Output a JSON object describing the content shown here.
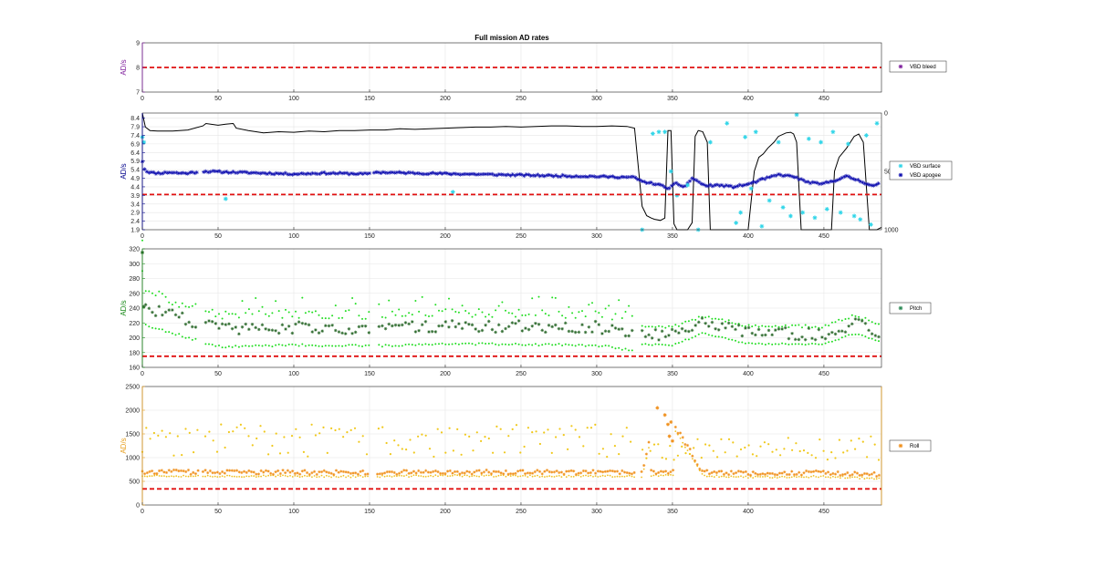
{
  "chart_data": {
    "type": "scatter",
    "title": "Full mission AD rates",
    "x_ticks": [
      0,
      50,
      100,
      150,
      200,
      250,
      300,
      350,
      400,
      450
    ],
    "xlim": [
      0,
      488
    ],
    "panels": [
      {
        "ylabel": "AD/s",
        "color": "#7e1e9c",
        "ylim": [
          7,
          9
        ],
        "y_ticks": [
          7,
          8,
          9
        ],
        "threshold": 8,
        "legend": [
          "VBD bleed"
        ],
        "legend_colors": [
          "#7e1e9c"
        ],
        "series": [
          {
            "name": "VBD bleed",
            "x": [],
            "y": []
          }
        ]
      },
      {
        "ylabel": "AD/s",
        "color": "#00008b",
        "ylim": [
          1.9,
          8.7
        ],
        "y_ticks": [
          1.9,
          2.4,
          2.9,
          3.4,
          3.9,
          4.4,
          4.9,
          5.4,
          5.9,
          6.4,
          6.9,
          7.4,
          7.9,
          8.4
        ],
        "y2_ticks": [
          "0",
          "500",
          "1000"
        ],
        "threshold": 3.95,
        "legend": [
          "VBD surface",
          "VBD apogee"
        ],
        "legend_colors": [
          "#30d5e8",
          "#1010b0"
        ],
        "series": [
          {
            "name": "VBD surface",
            "x": [
              0,
              1,
              55,
              205,
              330,
              337,
              341,
              345,
              349,
              353,
              360,
              367,
              375,
              386,
              392,
              395,
              398,
              402,
              405,
              409,
              414,
              420,
              423,
              428,
              432,
              436,
              440,
              444,
              448,
              452,
              456,
              461,
              466,
              470,
              474,
              478,
              481,
              485
            ],
            "y": [
              7.3,
              7.0,
              3.7,
              4.1,
              1.9,
              7.5,
              7.6,
              7.6,
              5.3,
              3.9,
              4.5,
              1.9,
              7.0,
              8.1,
              2.3,
              2.9,
              7.3,
              4.3,
              7.6,
              2.1,
              3.6,
              7.0,
              3.2,
              2.7,
              8.6,
              2.9,
              7.2,
              2.6,
              7.0,
              3.1,
              7.6,
              2.9,
              6.9,
              2.7,
              2.5,
              7.4,
              2.2,
              8.1
            ]
          },
          {
            "name": "VBD apogee",
            "x": [
              0,
              1,
              3,
              5,
              8,
              12,
              18,
              24,
              30,
              35,
              40,
              60,
              80,
              100,
              120,
              150,
              153,
              180,
              210,
              240,
              270,
              300,
              325,
              330,
              340,
              348,
              352,
              358,
              363,
              372,
              380,
              390,
              400,
              410,
              420,
              430,
              438,
              448,
              458,
              465,
              472,
              478,
              483,
              487
            ],
            "y": [
              5.9,
              5.5,
              5.3,
              5.25,
              5.2,
              5.2,
              5.25,
              5.2,
              5.2,
              5.25,
              5.3,
              5.25,
              5.2,
              5.15,
              5.2,
              5.15,
              5.25,
              5.2,
              5.15,
              5.1,
              5.05,
              5.0,
              4.95,
              4.7,
              4.55,
              4.3,
              4.6,
              4.4,
              4.9,
              4.45,
              4.5,
              4.4,
              4.55,
              4.85,
              5.1,
              5.0,
              4.7,
              4.55,
              4.8,
              5.0,
              4.8,
              4.6,
              4.45,
              4.6
            ]
          }
        ],
        "depth": {
          "x": [
            0,
            2,
            5,
            10,
            20,
            30,
            40,
            42,
            50,
            55,
            60,
            62,
            70,
            80,
            90,
            100,
            110,
            120,
            130,
            140,
            150,
            160,
            170,
            180,
            190,
            200,
            210,
            220,
            230,
            240,
            250,
            260,
            270,
            280,
            290,
            300,
            310,
            320,
            325,
            330,
            333,
            336,
            338,
            342,
            345,
            347,
            349,
            351,
            353,
            356,
            360,
            363,
            365,
            367,
            370,
            373,
            375,
            380,
            385,
            390,
            395,
            400,
            404,
            407,
            410,
            413,
            417,
            420,
            425,
            428,
            430,
            432,
            435,
            440,
            445,
            450,
            455,
            457,
            460,
            465,
            470,
            473,
            476,
            480,
            485,
            488
          ],
          "y": [
            0,
            120,
            150,
            155,
            155,
            145,
            110,
            90,
            105,
            95,
            90,
            130,
            150,
            170,
            160,
            165,
            155,
            160,
            150,
            150,
            145,
            145,
            135,
            140,
            135,
            130,
            125,
            120,
            120,
            115,
            120,
            115,
            110,
            110,
            115,
            115,
            110,
            115,
            130,
            800,
            880,
            900,
            910,
            920,
            900,
            150,
            150,
            950,
            1000,
            1000,
            1000,
            940,
            200,
            150,
            160,
            250,
            1000,
            1000,
            1000,
            1000,
            1000,
            1000,
            500,
            380,
            350,
            300,
            250,
            200,
            170,
            165,
            180,
            250,
            1000,
            1000,
            1000,
            1000,
            1000,
            500,
            380,
            300,
            200,
            180,
            250,
            1000,
            1000,
            980
          ]
        }
      },
      {
        "ylabel": "AD/s",
        "color": "#1a8a1a",
        "ylim": [
          160,
          320
        ],
        "y_ticks": [
          160,
          180,
          200,
          220,
          240,
          260,
          280,
          300,
          320
        ],
        "threshold": 175,
        "legend": [
          "Pitch"
        ],
        "legend_colors": [
          "#2e8b57"
        ],
        "series": [
          {
            "name": "Pitch",
            "x": [
              0,
              1,
              50,
              100,
              150,
              200,
              250,
              300,
              330,
              350,
              370,
              400,
              450,
              470,
              488
            ],
            "y": [
              315,
              242,
              212,
              214,
              213,
              216,
              215,
              214,
              205,
              204,
              220,
              206,
              205,
              220,
              208
            ]
          }
        ]
      },
      {
        "ylabel": "AD/s",
        "color": "#e8a020",
        "ylim": [
          0,
          2500
        ],
        "y_ticks": [
          0,
          500,
          1000,
          1500,
          2000,
          2500
        ],
        "threshold": 340,
        "legend": [
          "Roll"
        ],
        "legend_colors": [
          "#f0901c"
        ],
        "series": [
          {
            "name": "Roll",
            "x": [
              0,
              50,
              100,
              150,
              200,
              250,
              300,
              330,
              340,
              347,
              350,
              370,
              400,
              450,
              488
            ],
            "y": [
              700,
              690,
              690,
              680,
              700,
              690,
              690,
              680,
              2050,
              1900,
              1750,
              700,
              670,
              680,
              640
            ]
          }
        ]
      }
    ]
  }
}
